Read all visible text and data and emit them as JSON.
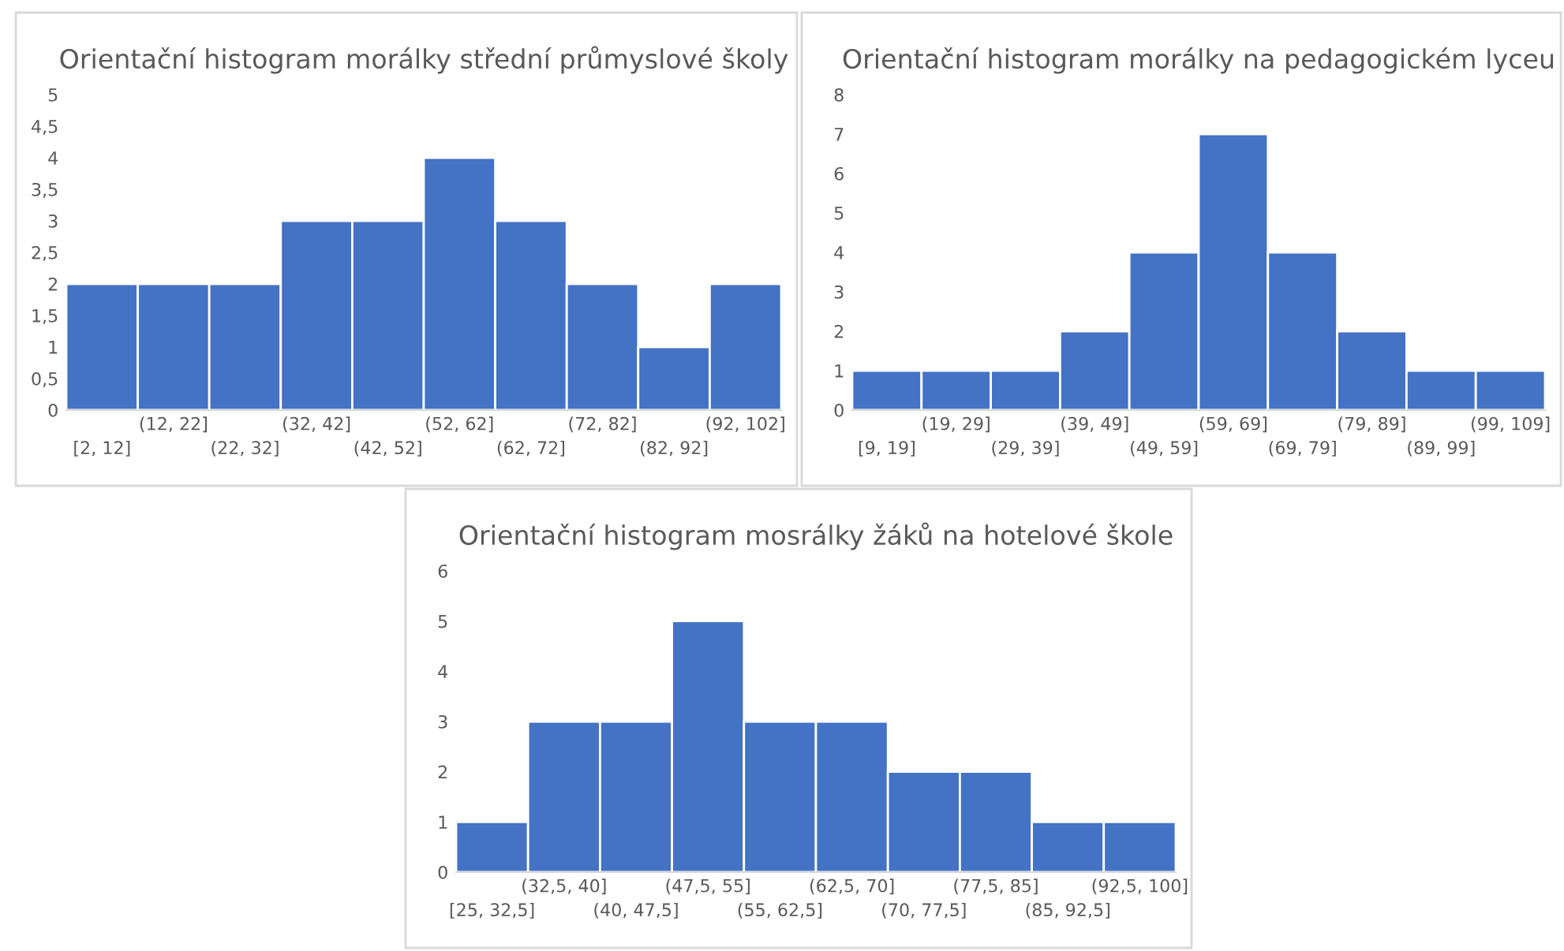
{
  "chart_data": [
    {
      "type": "bar",
      "title": "Orientační histogram morálky střední průmyslové školy",
      "categories": [
        "[2, 12]",
        "(12, 22]",
        "(22, 32]",
        "(32, 42]",
        "(42, 52]",
        "(52, 62]",
        "(62, 72]",
        "(72, 82]",
        "(82, 92]",
        "(92, 102]"
      ],
      "values": [
        2,
        2,
        2,
        3,
        3,
        4,
        3,
        2,
        1,
        2
      ],
      "color": "#4472c4",
      "ylim": [
        0,
        5
      ],
      "yticks": [
        0,
        {
          "value": 0.5,
          "label": "0,5"
        },
        1,
        {
          "value": 1.5,
          "label": "1,5"
        },
        2,
        {
          "value": 2.5,
          "label": "2,5"
        },
        3,
        {
          "value": 3.5,
          "label": "3,5"
        },
        4,
        {
          "value": 4.5,
          "label": "4,5"
        },
        5
      ],
      "grid": false,
      "legend": false
    },
    {
      "type": "bar",
      "title": "Orientační histogram morálky na pedagogickém lyceu",
      "categories": [
        "[9, 19]",
        "(19, 29]",
        "(29, 39]",
        "(39, 49]",
        "(49, 59]",
        "(59, 69]",
        "(69, 79]",
        "(79, 89]",
        "(89, 99]",
        "(99, 109]"
      ],
      "values": [
        1,
        1,
        1,
        2,
        4,
        7,
        4,
        2,
        1,
        1
      ],
      "color": "#4472c4",
      "ylim": [
        0,
        8
      ],
      "yticks": [
        0,
        1,
        2,
        3,
        4,
        5,
        6,
        7,
        8
      ],
      "grid": false,
      "legend": false
    },
    {
      "type": "bar",
      "title": "Orientační histogram mosrálky žáků na hotelové škole",
      "categories": [
        "[25, 32,5]",
        "(32,5, 40]",
        "(40, 47,5]",
        "(47,5, 55]",
        "(55, 62,5]",
        "(62,5, 70]",
        "(70, 77,5]",
        "(77,5, 85]",
        "(85, 92,5]",
        "(92,5, 100]"
      ],
      "values": [
        1,
        3,
        3,
        5,
        3,
        3,
        2,
        2,
        1,
        1
      ],
      "color": "#4472c4",
      "ylim": [
        0,
        6
      ],
      "yticks": [
        0,
        1,
        2,
        3,
        4,
        5,
        6
      ],
      "grid": false,
      "legend": false
    }
  ]
}
